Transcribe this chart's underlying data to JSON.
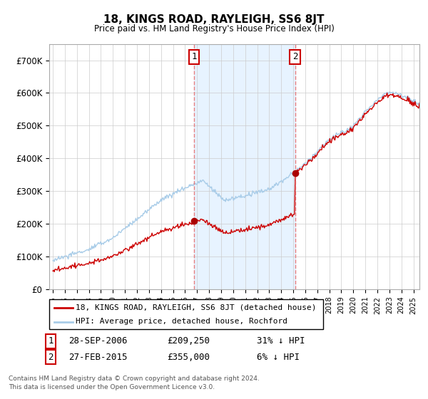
{
  "title": "18, KINGS ROAD, RAYLEIGH, SS6 8JT",
  "subtitle": "Price paid vs. HM Land Registry's House Price Index (HPI)",
  "ylim": [
    0,
    750000
  ],
  "yticks": [
    0,
    100000,
    200000,
    300000,
    400000,
    500000,
    600000,
    700000
  ],
  "ytick_labels": [
    "£0",
    "£100K",
    "£200K",
    "£300K",
    "£400K",
    "£500K",
    "£600K",
    "£700K"
  ],
  "sale1_date": 2006.75,
  "sale1_price": 209250,
  "sale1_label": "1",
  "sale1_text": "28-SEP-2006",
  "sale1_amount": "£209,250",
  "sale1_hpi": "31% ↓ HPI",
  "sale2_date": 2015.15,
  "sale2_price": 355000,
  "sale2_label": "2",
  "sale2_text": "27-FEB-2015",
  "sale2_amount": "£355,000",
  "sale2_hpi": "6% ↓ HPI",
  "hpi_color": "#a8cce8",
  "price_color": "#cc0000",
  "vline_color": "#e88080",
  "marker_color": "#aa0000",
  "shade_color": "#ddeeff",
  "legend_label_price": "18, KINGS ROAD, RAYLEIGH, SS6 8JT (detached house)",
  "legend_label_hpi": "HPI: Average price, detached house, Rochford",
  "footnote1": "Contains HM Land Registry data © Crown copyright and database right 2024.",
  "footnote2": "This data is licensed under the Open Government Licence v3.0.",
  "xstart": 1995,
  "xend": 2025
}
